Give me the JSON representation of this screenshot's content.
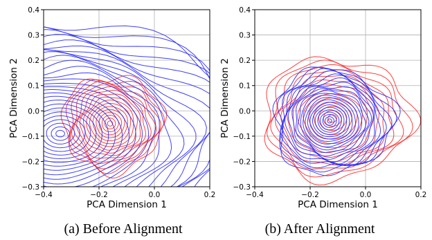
{
  "figure": {
    "captions": [
      "(a) Before Alignment",
      "(b) After Alignment"
    ]
  },
  "colors": {
    "series_a": "#ff2a2a",
    "series_b": "#2a2aff",
    "grid": "#b0b0b0"
  },
  "chart_data": [
    {
      "type": "contour",
      "xlabel": "PCA Dimension 1",
      "ylabel": "PCA Dimension 2",
      "xlim": [
        -0.4,
        0.2
      ],
      "ylim": [
        -0.3,
        0.4
      ],
      "xticks": [
        -0.4,
        -0.2,
        0.0,
        0.2
      ],
      "xtick_labels": [
        "−0.4",
        "−0.2",
        "0.0",
        "0.2"
      ],
      "yticks": [
        -0.3,
        -0.2,
        -0.1,
        0.0,
        0.1,
        0.2,
        0.3,
        0.4
      ],
      "ytick_labels": [
        "−0.3",
        "−0.2",
        "−0.1",
        "0.0",
        "0.1",
        "0.2",
        "0.3",
        "0.4"
      ],
      "grid": true,
      "series": [
        {
          "color": "#ff2a2a",
          "center": [
            -0.16,
            -0.05
          ],
          "levels": 16,
          "rx": 0.17,
          "ry": 0.19
        },
        {
          "color": "#2a2aff",
          "center": [
            -0.34,
            -0.09
          ],
          "levels": 28,
          "rx": 0.52,
          "ry": 0.43
        }
      ]
    },
    {
      "type": "contour",
      "xlabel": "PCA Dimension 1",
      "ylabel": "PCA Dimension 2",
      "xlim": [
        -0.4,
        0.2
      ],
      "ylim": [
        -0.3,
        0.4
      ],
      "xticks": [
        -0.4,
        -0.2,
        0.0,
        0.2
      ],
      "xtick_labels": [
        "−0.4",
        "−0.2",
        "0.0",
        "0.2"
      ],
      "yticks": [
        -0.3,
        -0.2,
        -0.1,
        0.0,
        0.1,
        0.2,
        0.3,
        0.4
      ],
      "ytick_labels": [
        "−0.3",
        "−0.2",
        "−0.1",
        "0.0",
        "0.1",
        "0.2",
        "0.3",
        "0.4"
      ],
      "grid": true,
      "series": [
        {
          "color": "#ff2a2a",
          "center": [
            -0.12,
            -0.03
          ],
          "levels": 14,
          "rx": 0.25,
          "ry": 0.24
        },
        {
          "color": "#2a2aff",
          "center": [
            -0.13,
            -0.04
          ],
          "levels": 22,
          "rx": 0.2,
          "ry": 0.21
        }
      ]
    }
  ]
}
